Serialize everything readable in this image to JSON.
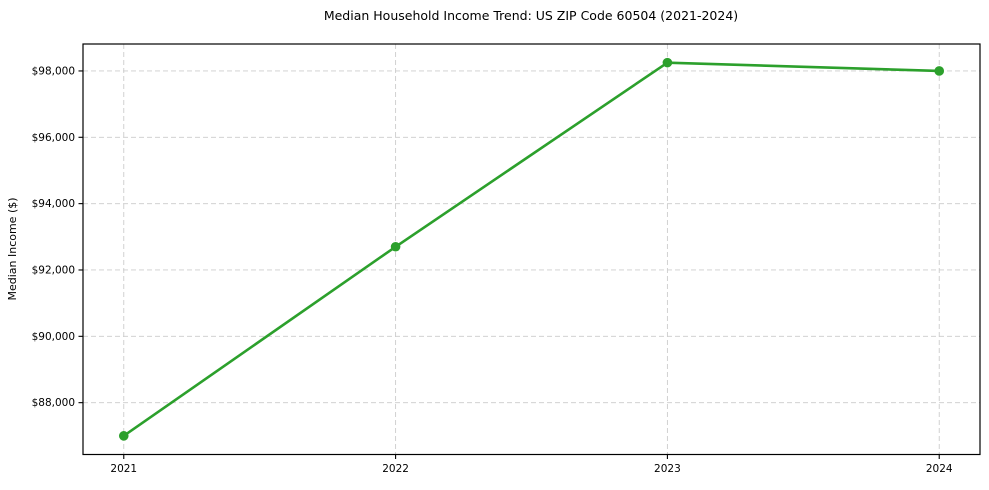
{
  "chart_data": {
    "type": "line",
    "title": "Median Household Income Trend: US ZIP Code 60504 (2021-2024)",
    "xlabel": "",
    "ylabel": "Median Income ($)",
    "x": [
      2021,
      2022,
      2023,
      2024
    ],
    "x_tick_labels": [
      "2021",
      "2022",
      "2023",
      "2024"
    ],
    "series": [
      {
        "name": "Median Income",
        "values": [
          87000,
          92700,
          98250,
          98000
        ]
      }
    ],
    "y_ticks": [
      88000,
      90000,
      92000,
      94000,
      96000,
      98000
    ],
    "y_tick_labels": [
      "$88,000",
      "$90,000",
      "$92,000",
      "$94,000",
      "$96,000",
      "$98,000"
    ],
    "xlim": [
      2020.85,
      2024.15
    ],
    "ylim": [
      86437.5,
      98812.5
    ],
    "grid": true,
    "legend": "none",
    "colors": {
      "line": "#2ca02c",
      "marker": "#2ca02c",
      "grid": "#cccccc",
      "spine": "#000000",
      "background": "#ffffff"
    }
  }
}
